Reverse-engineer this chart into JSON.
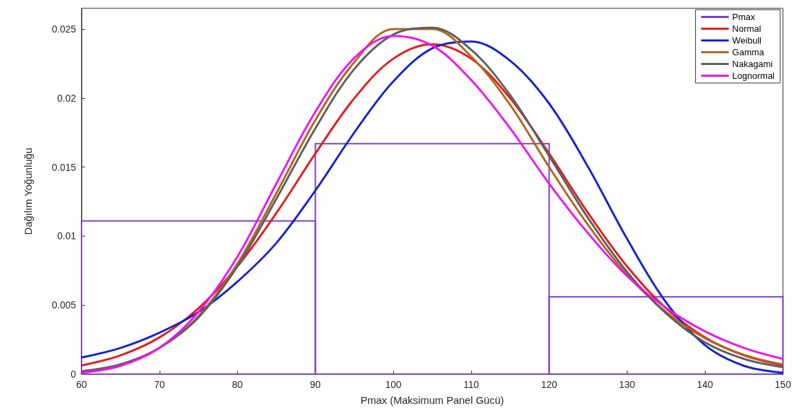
{
  "chart_data": {
    "type": "histogram",
    "xlabel": "Pmax (Maksimum Panel Gücü)",
    "ylabel": "Dağılım Yoğunluğu",
    "bins": [
      60,
      90,
      120,
      150
    ],
    "series": [
      {
        "name": "Pmax",
        "color": "#7b3fc4",
        "values": [
          0.0111,
          0.0167,
          0.0056
        ]
      },
      {
        "name": "Normal",
        "type": "line",
        "color": "#e01e1e",
        "x": [
          60,
          65,
          70,
          75,
          80,
          85,
          90,
          95,
          100,
          105,
          110,
          115,
          120,
          125,
          130,
          135,
          140,
          145,
          150
        ],
        "values": [
          0.00063,
          0.00136,
          0.00266,
          0.00476,
          0.0078,
          0.01167,
          0.01597,
          0.01998,
          0.02285,
          0.0239,
          0.02285,
          0.01998,
          0.01597,
          0.01167,
          0.0078,
          0.00476,
          0.00266,
          0.00136,
          0.00063
        ]
      },
      {
        "name": "Weibull",
        "type": "line",
        "color": "#1424d0",
        "x": [
          60,
          65,
          70,
          75,
          80,
          85,
          90,
          95,
          100,
          105,
          110,
          115,
          120,
          125,
          130,
          135,
          140,
          145,
          150
        ],
        "values": [
          0.0012,
          0.0019,
          0.003,
          0.0045,
          0.0067,
          0.0095,
          0.0133,
          0.0175,
          0.0212,
          0.0236,
          0.0241,
          0.0227,
          0.0196,
          0.015,
          0.0098,
          0.0052,
          0.0021,
          0.0006,
          0.0001
        ]
      },
      {
        "name": "Gamma",
        "type": "line",
        "color": "#b5651d",
        "x": [
          60,
          65,
          70,
          75,
          80,
          85,
          90,
          95,
          100,
          105,
          110,
          115,
          120,
          125,
          130,
          135,
          140,
          145,
          150
        ],
        "values": [
          0.0002,
          0.0007,
          0.0019,
          0.0042,
          0.008,
          0.0131,
          0.0184,
          0.0226,
          0.025,
          0.025,
          0.023,
          0.0195,
          0.015,
          0.0108,
          0.0072,
          0.0045,
          0.0026,
          0.0014,
          0.0007
        ]
      },
      {
        "name": "Nakagami",
        "type": "line",
        "color": "#5f5f5f",
        "x": [
          60,
          65,
          70,
          75,
          80,
          85,
          90,
          95,
          100,
          105,
          110,
          115,
          120,
          125,
          130,
          135,
          140,
          145,
          150
        ],
        "values": [
          0.0002,
          0.0007,
          0.0019,
          0.0041,
          0.0078,
          0.0127,
          0.0178,
          0.0221,
          0.0246,
          0.0251,
          0.0235,
          0.0202,
          0.0158,
          0.0113,
          0.0074,
          0.0044,
          0.0023,
          0.0011,
          0.0005
        ]
      },
      {
        "name": "Lognormal",
        "type": "line",
        "color": "#f014f0",
        "x": [
          60,
          65,
          70,
          75,
          80,
          85,
          90,
          95,
          100,
          105,
          110,
          115,
          120,
          125,
          130,
          135,
          140,
          145,
          150
        ],
        "values": [
          0.0001,
          0.0006,
          0.0019,
          0.0045,
          0.0085,
          0.0138,
          0.019,
          0.0229,
          0.0245,
          0.0238,
          0.0213,
          0.0178,
          0.0138,
          0.0102,
          0.0071,
          0.0048,
          0.0031,
          0.0019,
          0.0011
        ]
      }
    ],
    "xlim": [
      60,
      150
    ],
    "xticks": [
      60,
      70,
      80,
      90,
      100,
      110,
      120,
      130,
      140,
      150
    ],
    "ylim": [
      0,
      0.0265
    ],
    "yticks": [
      0,
      0.005,
      0.01,
      0.015,
      0.02,
      0.025
    ],
    "grid": false,
    "legend": "top right",
    "marker": "none",
    "line_style": "solid"
  }
}
